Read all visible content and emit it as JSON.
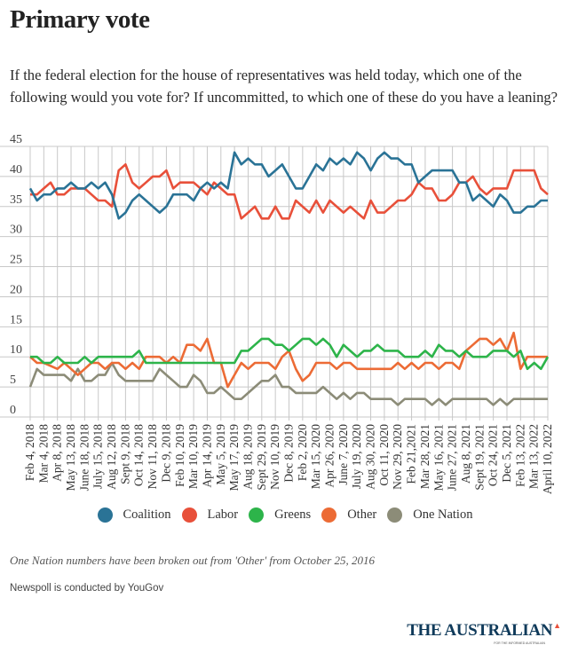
{
  "header": {
    "title": "Primary vote",
    "subtitle": "If the federal election for the house of representatives was held today, which one of the following would you vote for? If uncommitted, to which one of these do you have a leaning?"
  },
  "chart_data": {
    "type": "line",
    "title": "Primary vote",
    "xlabel": "",
    "ylabel": "",
    "ylim": [
      0,
      45
    ],
    "yticks": [
      0,
      5,
      10,
      15,
      20,
      25,
      30,
      35,
      40,
      45
    ],
    "grid": true,
    "legend_position": "bottom-center",
    "x_tick_labels": [
      "Feb 4, 2018",
      "Mar 4, 2018",
      "Apr 8, 2018",
      "May 13, 2018",
      "June 18, 2018",
      "July 15, 2018",
      "Aug 12, 2018",
      "Sept 9, 2018",
      "Oct 14, 2018",
      "Nov 11, 2018",
      "Dec 9, 2018",
      "Feb 10, 2019",
      "Mar 10, 2019",
      "Apr 14, 2019",
      "May 5, 2019",
      "May 17, 2019",
      "Aug 18, 2019",
      "Sept 29, 2019",
      "Nov 10, 2019",
      "Dec 8, 2019",
      "Feb 2, 2020",
      "Mar 15, 2020",
      "Apr 26, 2020",
      "June 7, 2020",
      "July 19, 2020",
      "Aug 30, 2020",
      "Oct 11, 2020",
      "Nov 29, 2020",
      "Feb 21,2021",
      "Mar 28, 2021",
      "May 16, 2021",
      "June 27, 2021",
      "Aug 8, 2021",
      "Sept 19, 2021",
      "Oct 24, 2021",
      "Dec 5, 2021",
      "Feb 13, 2022",
      "Mar 13, 2022",
      "April 10, 2022"
    ],
    "series": [
      {
        "name": "Coalition",
        "color": "#2a7396",
        "values": [
          38,
          36,
          37,
          37,
          38,
          38,
          39,
          38,
          38,
          39,
          38,
          39,
          37,
          33,
          34,
          36,
          37,
          36,
          35,
          34,
          35,
          37,
          37,
          37,
          36,
          38,
          39,
          38,
          39,
          38,
          44,
          42,
          43,
          42,
          42,
          40,
          41,
          42,
          40,
          38,
          38,
          40,
          42,
          41,
          43,
          42,
          43,
          42,
          44,
          43,
          41,
          43,
          44,
          43,
          43,
          42,
          42,
          39,
          40,
          41,
          41,
          41,
          41,
          39,
          39,
          36,
          37,
          36,
          35,
          37,
          36,
          34,
          34,
          35,
          35,
          36,
          36
        ]
      },
      {
        "name": "Labor",
        "color": "#e8503a",
        "values": [
          37,
          37,
          38,
          39,
          37,
          37,
          38,
          38,
          38,
          37,
          36,
          36,
          35,
          41,
          42,
          39,
          38,
          39,
          40,
          40,
          41,
          38,
          39,
          39,
          39,
          38,
          37,
          39,
          38,
          37,
          37,
          33,
          34,
          35,
          33,
          33,
          35,
          33,
          33,
          36,
          35,
          34,
          36,
          34,
          36,
          35,
          34,
          35,
          34,
          33,
          36,
          34,
          34,
          35,
          36,
          36,
          37,
          39,
          38,
          38,
          36,
          36,
          37,
          39,
          39,
          40,
          38,
          37,
          38,
          38,
          38,
          41,
          41,
          41,
          41,
          38,
          37
        ]
      },
      {
        "name": "Greens",
        "color": "#2db44a",
        "values": [
          10,
          10,
          9,
          9,
          10,
          9,
          9,
          9,
          10,
          9,
          10,
          10,
          10,
          10,
          10,
          10,
          11,
          9,
          9,
          9,
          9,
          9,
          9,
          9,
          9,
          9,
          9,
          9,
          9,
          9,
          9,
          11,
          11,
          12,
          13,
          13,
          12,
          12,
          11,
          12,
          13,
          13,
          12,
          13,
          12,
          10,
          12,
          11,
          10,
          11,
          11,
          12,
          11,
          11,
          11,
          10,
          10,
          10,
          11,
          10,
          12,
          11,
          11,
          10,
          11,
          10,
          10,
          10,
          11,
          11,
          11,
          10,
          11,
          8,
          9,
          8,
          10
        ]
      },
      {
        "name": "Other",
        "color": "#ec6b35",
        "values": [
          10,
          9,
          9,
          8.5,
          8,
          9,
          8,
          7,
          8,
          9,
          9,
          8,
          9,
          9,
          8,
          9,
          8,
          10,
          10,
          10,
          9,
          10,
          9,
          12,
          12,
          11,
          13,
          9,
          9,
          5,
          7,
          9,
          8,
          9,
          9,
          9,
          8,
          10,
          11,
          8,
          6,
          7,
          9,
          9,
          9,
          8,
          9,
          9,
          8,
          8,
          8,
          8,
          8,
          8,
          9,
          8,
          9,
          8,
          9,
          9,
          8,
          9,
          9,
          8,
          11,
          12,
          13,
          13,
          12,
          13,
          11,
          14,
          8,
          10,
          10,
          10,
          10
        ]
      },
      {
        "name": "One Nation",
        "color": "#8c8c78",
        "values": [
          5,
          8,
          7,
          7,
          7,
          7,
          6,
          8,
          6,
          6,
          7,
          7,
          9,
          7,
          6,
          6,
          6,
          6,
          6,
          8,
          7,
          6,
          5,
          5,
          7,
          6,
          4,
          4,
          5,
          4,
          3,
          3,
          4,
          5,
          6,
          6,
          7,
          5,
          5,
          4,
          4,
          4,
          4,
          5,
          4,
          3,
          4,
          3,
          4,
          4,
          3,
          3,
          3,
          3,
          2,
          3,
          3,
          3,
          3,
          2,
          3,
          2,
          3,
          3,
          3,
          3,
          3,
          3,
          2,
          3,
          2,
          3,
          3,
          3,
          3,
          3,
          3
        ]
      }
    ]
  },
  "legend": [
    {
      "label": "Coalition",
      "color": "#2a7396"
    },
    {
      "label": "Labor",
      "color": "#e8503a"
    },
    {
      "label": "Greens",
      "color": "#2db44a"
    },
    {
      "label": "Other",
      "color": "#ec6b35"
    },
    {
      "label": "One Nation",
      "color": "#8c8c78"
    }
  ],
  "footer": {
    "note": "One Nation numbers have been broken out from 'Other' from October 25, 2016",
    "source": "Newspoll is conducted by YouGov",
    "logo": "THE AUSTRALIAN",
    "logo_tagline": "FOR THE INFORMED AUSTRALIAN"
  }
}
